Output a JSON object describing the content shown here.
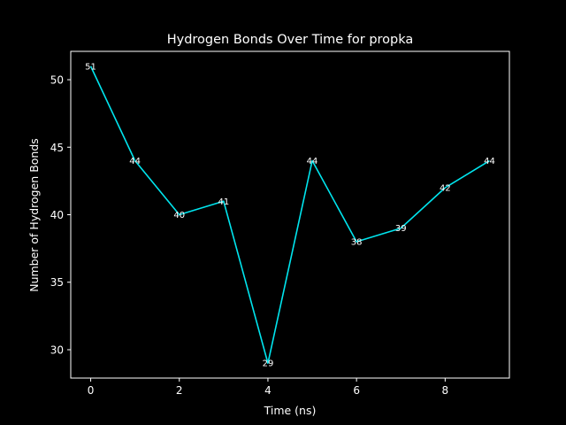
{
  "chart_data": {
    "type": "line",
    "title": "Hydrogen Bonds Over Time for propka",
    "xlabel": "Time (ns)",
    "ylabel": "Number of Hydrogen Bonds",
    "x": [
      0,
      1,
      2,
      3,
      4,
      5,
      6,
      7,
      8,
      9
    ],
    "series": [
      {
        "values": [
          51,
          44,
          40,
          41,
          29,
          44,
          38,
          39,
          42,
          44
        ],
        "color": "#00e5ee"
      }
    ],
    "xlim": [
      -0.45,
      9.45
    ],
    "ylim": [
      27.9,
      52.1
    ],
    "xticks": [
      0,
      2,
      4,
      6,
      8
    ],
    "yticks": [
      30,
      35,
      40,
      45,
      50
    ],
    "grid": false,
    "legend": "none",
    "colors": {
      "background": "#000000",
      "foreground": "#ffffff",
      "line": "#00e5ee"
    }
  }
}
